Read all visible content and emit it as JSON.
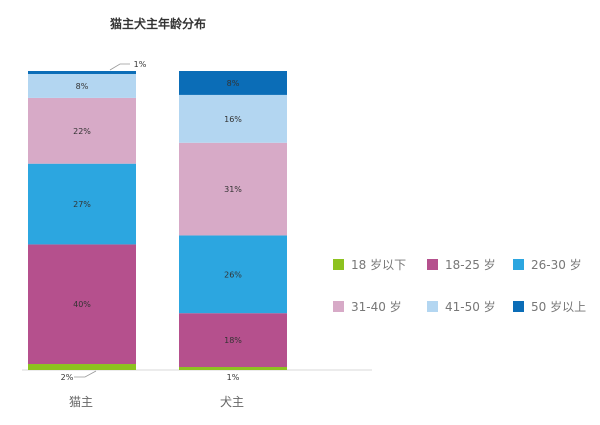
{
  "chart_data": {
    "type": "stacked-bar",
    "title": "猫主犬主年龄分布",
    "categories": [
      "猫主",
      "犬主"
    ],
    "series": [
      {
        "name": "18 岁以下",
        "color": "#8dc21f",
        "values": [
          2,
          1
        ],
        "labels": [
          "2%",
          "1%"
        ]
      },
      {
        "name": "18-25 岁",
        "color": "#b5508d",
        "values": [
          40,
          18
        ],
        "labels": [
          "40%",
          "18%"
        ]
      },
      {
        "name": "26-30 岁",
        "color": "#2ca6e0",
        "values": [
          27,
          26
        ],
        "labels": [
          "27%",
          "26%"
        ]
      },
      {
        "name": "31-40 岁",
        "color": "#d7aac7",
        "values": [
          22,
          31
        ],
        "labels": [
          "22%",
          "31%"
        ]
      },
      {
        "name": "41-50 岁",
        "color": "#b3d6f1",
        "values": [
          8,
          16
        ],
        "labels": [
          "8%",
          "16%"
        ]
      },
      {
        "name": "50 岁以上",
        "color": "#0b6db7",
        "values": [
          1,
          8
        ],
        "labels": [
          "1%",
          "8%"
        ]
      }
    ],
    "ylim": [
      0,
      100
    ],
    "legend": "right",
    "grid": false
  }
}
